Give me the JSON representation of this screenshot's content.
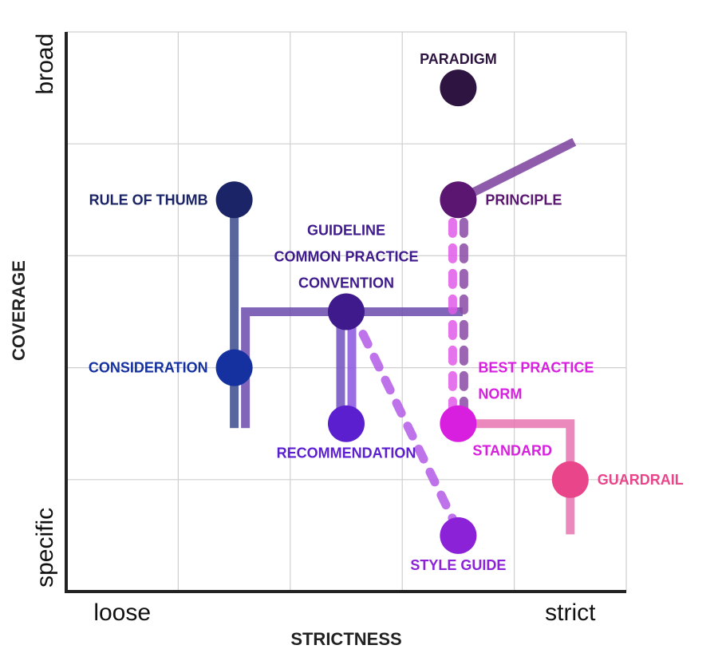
{
  "chart_data": {
    "type": "scatter",
    "title": "",
    "xlabel": "STRICTNESS",
    "ylabel": "COVERAGE",
    "xlim": [
      0,
      5
    ],
    "ylim": [
      0,
      5
    ],
    "grid": true,
    "x_tick_labels": [
      {
        "value": 0.5,
        "text": "loose"
      },
      {
        "value": 4.5,
        "text": "strict"
      }
    ],
    "y_tick_labels": [
      {
        "value": 0.5,
        "text": "specific"
      },
      {
        "value": 4.5,
        "text": "broad"
      }
    ],
    "points": [
      {
        "id": "paradigm",
        "x": 3.5,
        "y": 4.5,
        "color": "#2e1440",
        "labels": [
          "PARADIGM"
        ],
        "label_pos": "above"
      },
      {
        "id": "rule-of-thumb",
        "x": 1.5,
        "y": 3.5,
        "color": "#1a2466",
        "labels": [
          "RULE OF THUMB"
        ],
        "label_pos": "left"
      },
      {
        "id": "principle",
        "x": 3.5,
        "y": 3.5,
        "color": "#5a1670",
        "labels": [
          "PRINCIPLE"
        ],
        "label_pos": "right"
      },
      {
        "id": "guideline",
        "x": 2.5,
        "y": 2.5,
        "color": "#3f1a8c",
        "labels": [
          "GUIDELINE",
          "COMMON PRACTICE",
          "CONVENTION"
        ],
        "label_pos": "above"
      },
      {
        "id": "consideration",
        "x": 1.5,
        "y": 2.0,
        "color": "#1531a0",
        "labels": [
          "CONSIDERATION"
        ],
        "label_pos": "left"
      },
      {
        "id": "recommendation",
        "x": 2.5,
        "y": 1.5,
        "color": "#5b1fcf",
        "labels": [
          "RECOMMENDATION"
        ],
        "label_pos": "below"
      },
      {
        "id": "standard",
        "x": 3.5,
        "y": 1.5,
        "color": "#d81fe0",
        "labels": [
          "STANDARD"
        ],
        "label_pos": "below-right"
      },
      {
        "id": "best-practice",
        "x": 3.5,
        "y": 1.5,
        "color": "#d81fe0",
        "labels": [
          "BEST PRACTICE",
          "NORM"
        ],
        "label_pos": "above-right",
        "marker": false
      },
      {
        "id": "guardrail",
        "x": 4.5,
        "y": 1.0,
        "color": "#e8458a",
        "labels": [
          "GUARDRAIL"
        ],
        "label_pos": "right"
      },
      {
        "id": "style-guide",
        "x": 3.5,
        "y": 0.5,
        "color": "#8b22d8",
        "labels": [
          "STYLE GUIDE"
        ],
        "label_pos": "below"
      }
    ],
    "connectors": [
      {
        "from": "principle",
        "to_point": [
          4.5,
          4.0
        ],
        "color": "#7b3f9e",
        "style": "solid"
      },
      {
        "path": [
          [
            1.5,
            3.5
          ],
          [
            1.5,
            1.5
          ]
        ],
        "color": "#3c4a8c",
        "style": "solid",
        "faded_from": 2.5
      },
      {
        "path": [
          [
            1.6,
            1.5
          ],
          [
            1.6,
            2.5
          ],
          [
            3.5,
            2.5
          ]
        ],
        "color": "#6a4aab",
        "style": "solid"
      },
      {
        "path": [
          [
            2.45,
            2.5
          ],
          [
            2.45,
            1.5
          ]
        ],
        "color": "#7050c0",
        "style": "solid"
      },
      {
        "path": [
          [
            2.55,
            2.5
          ],
          [
            2.55,
            1.5
          ]
        ],
        "color": "#8a55e0",
        "style": "solid"
      },
      {
        "path": [
          [
            2.65,
            2.3
          ],
          [
            3.45,
            0.65
          ]
        ],
        "color": "#b45ae8",
        "style": "dashed"
      },
      {
        "path": [
          [
            3.45,
            3.3
          ],
          [
            3.45,
            1.6
          ]
        ],
        "color": "#e05ae8",
        "style": "dashed"
      },
      {
        "path": [
          [
            3.55,
            3.3
          ],
          [
            3.55,
            1.6
          ]
        ],
        "color": "#8a4aa6",
        "style": "dashed"
      },
      {
        "path": [
          [
            3.5,
            1.5
          ],
          [
            4.5,
            1.5
          ],
          [
            4.5,
            0.55
          ]
        ],
        "color": "#e873b0",
        "style": "solid"
      }
    ]
  }
}
